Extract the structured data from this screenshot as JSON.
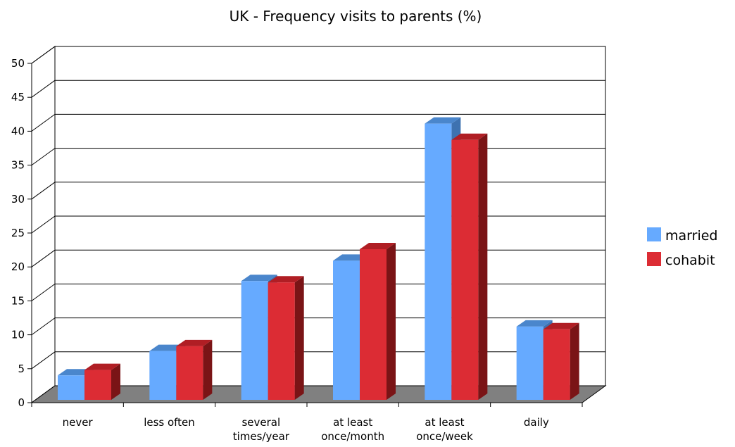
{
  "chart_data": {
    "type": "bar",
    "title": "UK - Frequency visits to parents (%)",
    "xlabel": "",
    "ylabel": "",
    "ylim": [
      0,
      50
    ],
    "yticks": [
      0,
      5,
      10,
      15,
      20,
      25,
      30,
      35,
      40,
      45,
      50
    ],
    "grid": true,
    "legend_position": "right",
    "categories": [
      [
        "never"
      ],
      [
        "less often"
      ],
      [
        "several",
        "times/year"
      ],
      [
        "at least",
        "once/month"
      ],
      [
        "at least",
        "once/week"
      ],
      [
        "daily"
      ]
    ],
    "series": [
      {
        "name": "married",
        "values": [
          3.6,
          7.2,
          17.5,
          20.5,
          40.7,
          10.8
        ]
      },
      {
        "name": "cohabit",
        "values": [
          4.4,
          7.9,
          17.3,
          22.2,
          38.3,
          10.4
        ]
      }
    ],
    "colors": {
      "married_front": "#66aaff",
      "married_top": "#4a86cc",
      "married_side": "#3e72b0",
      "cohabit_front": "#dc2c34",
      "cohabit_top": "#b01e24",
      "cohabit_side": "#7a1416",
      "floor": "#808080"
    }
  }
}
